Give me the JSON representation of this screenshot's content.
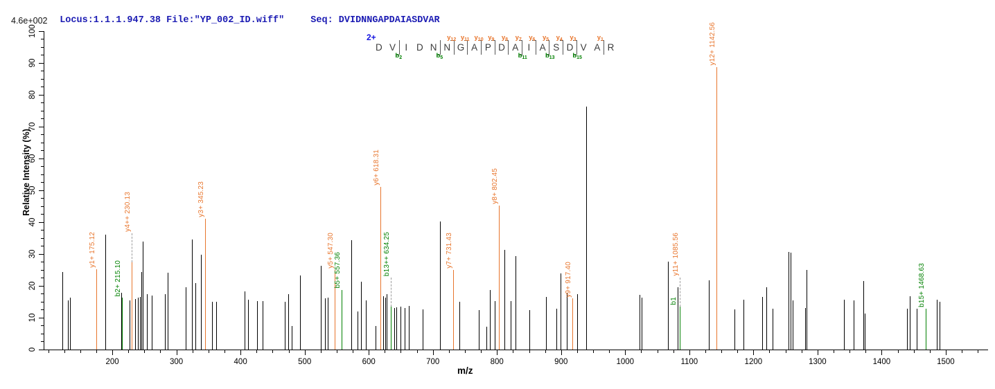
{
  "header": {
    "locus_text": "Locus:1.1.1.947.38 File:\"YP_002_ID.wiff\"",
    "seq_text": "Seq: DVIDNNGAPDAIASDVAR",
    "max_intensity_label": "4.6e+002"
  },
  "peptide": {
    "charge_label": "2+",
    "sequence": "DVIDNNGAPDAIASDVAR",
    "residues": [
      {
        "aa": "D"
      },
      {
        "aa": "V"
      },
      {
        "aa": "I",
        "b": "b2"
      },
      {
        "aa": "D"
      },
      {
        "aa": "N"
      },
      {
        "aa": "N",
        "b": "b5"
      },
      {
        "aa": "G",
        "y": "y12"
      },
      {
        "aa": "A",
        "y": "y11"
      },
      {
        "aa": "P",
        "y": "y10"
      },
      {
        "aa": "D",
        "y": "y9"
      },
      {
        "aa": "A",
        "y": "y8"
      },
      {
        "aa": "I",
        "y": "y7",
        "b": "b11"
      },
      {
        "aa": "A",
        "y": "y6"
      },
      {
        "aa": "S",
        "y": "y5",
        "b": "b13"
      },
      {
        "aa": "D",
        "y": "y4"
      },
      {
        "aa": "V",
        "y": "y3",
        "b": "b15"
      },
      {
        "aa": "A"
      },
      {
        "aa": "R",
        "y": "y1"
      }
    ]
  },
  "colors": {
    "y_ion": "#e8752c",
    "b_ion": "#008000",
    "peak": "#000000",
    "header_text": "#1b1bb3",
    "dashed_connector": "#9a9a9a"
  },
  "chart_data": {
    "type": "bar",
    "subtype": "mass-spectrum-stick-plot",
    "title": "",
    "xlabel": "m/z",
    "ylabel": "Relative  Intensity (%)",
    "xlim": [
      94,
      1566
    ],
    "ylim": [
      0,
      100
    ],
    "x_major_ticks": [
      200,
      300,
      400,
      500,
      600,
      700,
      800,
      900,
      1000,
      1100,
      1200,
      1300,
      1400,
      1500
    ],
    "x_minor_tick_step": 25,
    "y_major_ticks": [
      0,
      10,
      20,
      30,
      40,
      50,
      60,
      70,
      80,
      90,
      100
    ],
    "y_minor_tick_step": 2.5,
    "grid": false,
    "legend": "none",
    "peaks": [
      [
        122,
        24.3
      ],
      [
        131,
        15.5
      ],
      [
        134,
        16.4
      ],
      [
        189,
        36.1
      ],
      [
        214,
        17.9
      ],
      [
        227,
        15.4
      ],
      [
        236,
        15.9
      ],
      [
        240,
        16.3
      ],
      [
        243,
        16.6
      ],
      [
        245,
        24.3
      ],
      [
        247,
        33.9
      ],
      [
        254,
        17.3
      ],
      [
        262,
        16.9
      ],
      [
        282,
        17.3
      ],
      [
        286,
        24.1
      ],
      [
        314.6,
        19.6
      ],
      [
        324.3,
        34.5
      ],
      [
        329.7,
        20.9
      ],
      [
        338.4,
        29.8
      ],
      [
        355.7,
        14.9
      ],
      [
        362,
        15.1
      ],
      [
        406.5,
        18.3
      ],
      [
        412,
        15.7
      ],
      [
        426,
        15.2
      ],
      [
        434.6,
        15.2
      ],
      [
        469,
        15.0
      ],
      [
        474.6,
        17.4
      ],
      [
        480,
        7.3
      ],
      [
        493,
        23.3
      ],
      [
        525.4,
        26.4
      ],
      [
        532,
        16.0
      ],
      [
        536,
        16.3
      ],
      [
        573.3,
        34.4
      ],
      [
        583,
        12.0
      ],
      [
        588,
        21.4
      ],
      [
        596,
        15.4
      ],
      [
        611,
        7.4
      ],
      [
        622.7,
        16.7
      ],
      [
        625.5,
        16.3
      ],
      [
        628,
        17.3
      ],
      [
        640,
        13.1
      ],
      [
        643,
        13.2
      ],
      [
        649,
        13.4
      ],
      [
        656,
        13.0
      ],
      [
        663,
        13.7
      ],
      [
        684,
        12.7
      ],
      [
        711.4,
        40.2
      ],
      [
        741,
        15.1
      ],
      [
        772,
        12.5
      ],
      [
        783,
        7.2
      ],
      [
        788.5,
        18.8
      ],
      [
        796,
        15.2
      ],
      [
        812,
        31.2
      ],
      [
        821,
        15.3
      ],
      [
        829,
        29.3
      ],
      [
        850,
        12.4
      ],
      [
        876,
        16.6
      ],
      [
        893,
        12.8
      ],
      [
        899.5,
        23.9
      ],
      [
        908.5,
        17.8
      ],
      [
        924.6,
        17.4
      ],
      [
        939,
        76.3
      ],
      [
        1022.7,
        17.2
      ],
      [
        1025.2,
        16.4
      ],
      [
        1066.5,
        27.7
      ],
      [
        1081.8,
        19.6
      ],
      [
        1130,
        21.7
      ],
      [
        1170.5,
        12.7
      ],
      [
        1184,
        15.6
      ],
      [
        1213.7,
        16.5
      ],
      [
        1219.8,
        19.6
      ],
      [
        1229.5,
        12.8
      ],
      [
        1254.8,
        30.6
      ],
      [
        1258.4,
        30.4
      ],
      [
        1261,
        15.4
      ],
      [
        1281,
        13.0
      ],
      [
        1283.3,
        24.9
      ],
      [
        1341.6,
        15.7
      ],
      [
        1356.8,
        15.5
      ],
      [
        1371,
        21.6
      ],
      [
        1374,
        11.4
      ],
      [
        1439.7,
        12.8
      ],
      [
        1444.3,
        16.8
      ],
      [
        1455,
        12.8
      ],
      [
        1486,
        15.6
      ],
      [
        1490,
        15.0
      ]
    ],
    "annotated_peaks": [
      {
        "label": "y1+ 175.12",
        "mz": 175.12,
        "intensity": 25.2,
        "type": "y"
      },
      {
        "label": "b2+ 215.10",
        "mz": 215.1,
        "intensity": 16.3,
        "type": "b"
      },
      {
        "label": "y4++ 230.13",
        "mz": 230.13,
        "intensity": 27.4,
        "type": "y",
        "dashed": true
      },
      {
        "label": "y3+ 345.23",
        "mz": 345.23,
        "intensity": 41.1,
        "type": "y"
      },
      {
        "label": "y5+ 547.30",
        "mz": 547.3,
        "intensity": 25.0,
        "type": "y"
      },
      {
        "label": "b5+ 557.36",
        "mz": 557.36,
        "intensity": 18.8,
        "type": "b"
      },
      {
        "label": "y6+ 618.31",
        "mz": 618.31,
        "intensity": 51.1,
        "type": "y"
      },
      {
        "label": "b13++ 634.25",
        "mz": 634.25,
        "intensity": 13.5,
        "type": "b",
        "dashed": true
      },
      {
        "label": "y7+ 731.43",
        "mz": 731.43,
        "intensity": 25.1,
        "type": "y"
      },
      {
        "label": "y8+ 802.45",
        "mz": 802.45,
        "intensity": 45.2,
        "type": "y"
      },
      {
        "label": "y9+ 917.40",
        "mz": 917.4,
        "intensity": 16.0,
        "type": "y"
      },
      {
        "label": "b1",
        "mz": 1082.0,
        "intensity": 13.5,
        "type": "b",
        "no_line": true
      },
      {
        "label": "y11+ 1085.56",
        "mz": 1085.56,
        "intensity": 13.5,
        "type": "y",
        "dashed": true,
        "line_color": "#008000"
      },
      {
        "label": "y12+ 1142.56",
        "mz": 1142.56,
        "intensity": 88.7,
        "type": "y"
      },
      {
        "label": "b15+ 1468.63",
        "mz": 1468.63,
        "intensity": 12.9,
        "type": "b"
      }
    ]
  }
}
